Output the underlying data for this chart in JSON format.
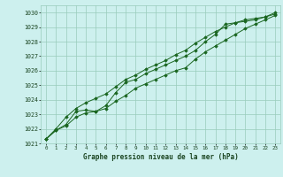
{
  "title": "Graphe pression niveau de la mer (hPa)",
  "bg_color": "#cdf0ee",
  "grid_color": "#99ccbb",
  "line_color": "#1a6620",
  "xlim_min": -0.5,
  "xlim_max": 23.5,
  "ylim_min": 1021,
  "ylim_max": 1030.5,
  "xticks": [
    0,
    1,
    2,
    3,
    4,
    5,
    6,
    7,
    8,
    9,
    10,
    11,
    12,
    13,
    14,
    15,
    16,
    17,
    18,
    19,
    20,
    21,
    22,
    23
  ],
  "yticks": [
    1021,
    1022,
    1023,
    1024,
    1025,
    1026,
    1027,
    1028,
    1029,
    1030
  ],
  "series1": [
    1021.3,
    1021.9,
    1022.2,
    1022.8,
    1023.1,
    1023.2,
    1023.4,
    1023.9,
    1024.3,
    1024.8,
    1025.1,
    1025.4,
    1025.7,
    1026.0,
    1026.2,
    1026.8,
    1027.3,
    1027.7,
    1028.1,
    1028.5,
    1028.9,
    1029.2,
    1029.5,
    1029.8
  ],
  "series2": [
    1021.3,
    1021.9,
    1022.3,
    1023.2,
    1023.3,
    1023.2,
    1023.6,
    1024.5,
    1025.2,
    1025.4,
    1025.8,
    1026.1,
    1026.4,
    1026.7,
    1027.0,
    1027.4,
    1028.0,
    1028.5,
    1029.2,
    1029.3,
    1029.5,
    1029.6,
    1029.7,
    1030.0
  ],
  "series3": [
    1021.3,
    1022.0,
    1022.8,
    1023.4,
    1023.8,
    1024.1,
    1024.4,
    1024.9,
    1025.4,
    1025.7,
    1026.1,
    1026.4,
    1026.7,
    1027.1,
    1027.4,
    1027.9,
    1028.3,
    1028.7,
    1029.0,
    1029.3,
    1029.4,
    1029.5,
    1029.7,
    1029.9
  ]
}
